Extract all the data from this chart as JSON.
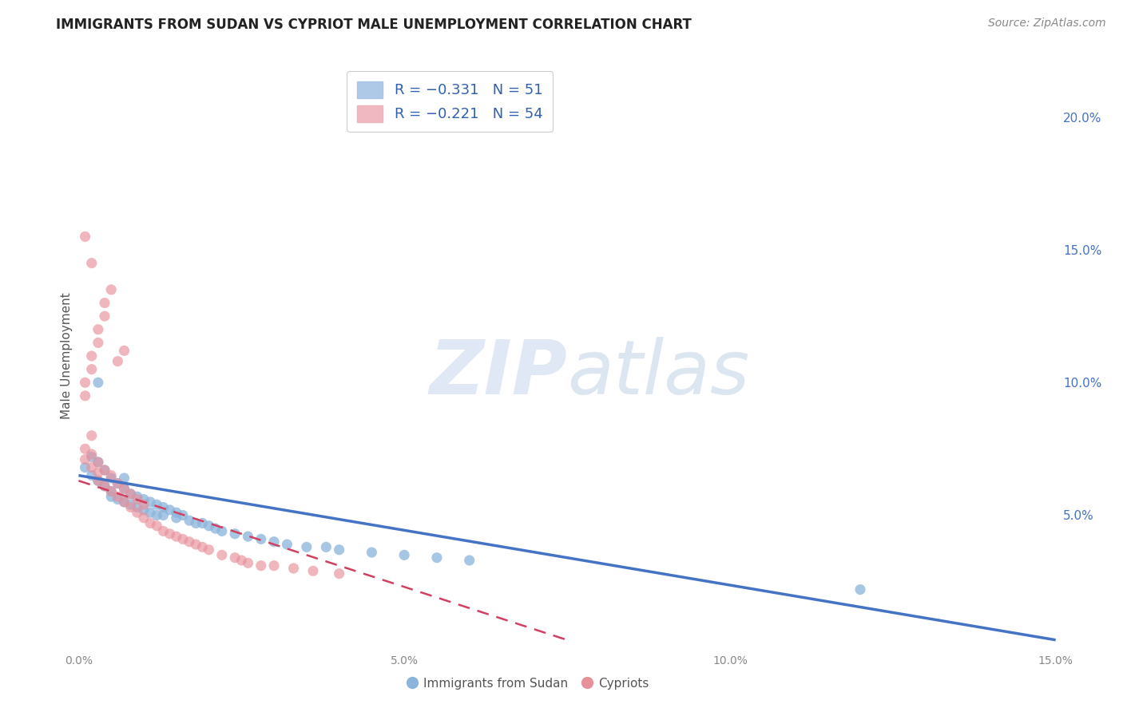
{
  "title": "IMMIGRANTS FROM SUDAN VS CYPRIOT MALE UNEMPLOYMENT CORRELATION CHART",
  "source": "Source: ZipAtlas.com",
  "ylabel": "Male Unemployment",
  "right_yticks": [
    "20.0%",
    "15.0%",
    "10.0%",
    "5.0%"
  ],
  "right_ytick_vals": [
    0.2,
    0.15,
    0.1,
    0.05
  ],
  "legend_labels": [
    "Immigrants from Sudan",
    "Cypriots"
  ],
  "xlim": [
    0.0,
    0.15
  ],
  "ylim": [
    0.0,
    0.22
  ],
  "blue_scatter_x": [
    0.001,
    0.002,
    0.002,
    0.003,
    0.003,
    0.004,
    0.004,
    0.005,
    0.005,
    0.005,
    0.006,
    0.006,
    0.007,
    0.007,
    0.008,
    0.008,
    0.009,
    0.009,
    0.01,
    0.01,
    0.011,
    0.011,
    0.012,
    0.012,
    0.013,
    0.013,
    0.014,
    0.015,
    0.015,
    0.016,
    0.017,
    0.018,
    0.019,
    0.02,
    0.021,
    0.022,
    0.024,
    0.026,
    0.028,
    0.03,
    0.032,
    0.035,
    0.038,
    0.04,
    0.045,
    0.05,
    0.055,
    0.06,
    0.12,
    0.003,
    0.007
  ],
  "blue_scatter_y": [
    0.068,
    0.065,
    0.072,
    0.063,
    0.07,
    0.061,
    0.067,
    0.059,
    0.064,
    0.057,
    0.062,
    0.056,
    0.06,
    0.055,
    0.058,
    0.054,
    0.057,
    0.053,
    0.056,
    0.052,
    0.055,
    0.051,
    0.054,
    0.05,
    0.053,
    0.05,
    0.052,
    0.051,
    0.049,
    0.05,
    0.048,
    0.047,
    0.047,
    0.046,
    0.045,
    0.044,
    0.043,
    0.042,
    0.041,
    0.04,
    0.039,
    0.038,
    0.038,
    0.037,
    0.036,
    0.035,
    0.034,
    0.033,
    0.022,
    0.1,
    0.064
  ],
  "pink_scatter_x": [
    0.001,
    0.001,
    0.002,
    0.002,
    0.003,
    0.003,
    0.003,
    0.004,
    0.004,
    0.005,
    0.005,
    0.006,
    0.006,
    0.007,
    0.007,
    0.008,
    0.008,
    0.009,
    0.009,
    0.01,
    0.01,
    0.011,
    0.012,
    0.013,
    0.014,
    0.015,
    0.016,
    0.017,
    0.018,
    0.019,
    0.02,
    0.022,
    0.024,
    0.025,
    0.026,
    0.028,
    0.03,
    0.033,
    0.036,
    0.04,
    0.002,
    0.001,
    0.001,
    0.002,
    0.002,
    0.003,
    0.003,
    0.004,
    0.004,
    0.005,
    0.006,
    0.007,
    0.001,
    0.002
  ],
  "pink_scatter_y": [
    0.071,
    0.075,
    0.068,
    0.073,
    0.066,
    0.07,
    0.063,
    0.067,
    0.061,
    0.065,
    0.059,
    0.062,
    0.057,
    0.06,
    0.055,
    0.058,
    0.053,
    0.056,
    0.051,
    0.054,
    0.049,
    0.047,
    0.046,
    0.044,
    0.043,
    0.042,
    0.041,
    0.04,
    0.039,
    0.038,
    0.037,
    0.035,
    0.034,
    0.033,
    0.032,
    0.031,
    0.031,
    0.03,
    0.029,
    0.028,
    0.08,
    0.095,
    0.1,
    0.105,
    0.11,
    0.115,
    0.12,
    0.125,
    0.13,
    0.135,
    0.108,
    0.112,
    0.155,
    0.145
  ],
  "blue_line_x": [
    0.0,
    0.15
  ],
  "blue_line_y": [
    0.065,
    0.003
  ],
  "pink_line_x": [
    0.0,
    0.075
  ],
  "pink_line_y": [
    0.063,
    0.003
  ],
  "blue_scatter_color": "#8ab4db",
  "pink_scatter_color": "#e8909a",
  "blue_line_color": "#4472c4",
  "pink_line_color": "#d04060",
  "grid_color": "#c8c8c8",
  "background_color": "#ffffff"
}
